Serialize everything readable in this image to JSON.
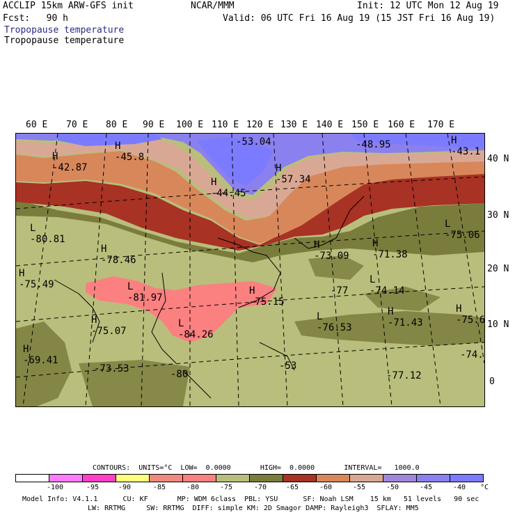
{
  "header": {
    "title": "ACCLIP 15km ARW-GFS init",
    "fcst": "Fcst:   90 h",
    "org": "NCAR/MMM",
    "init": "Init: 12 UTC Mon 12 Aug 19",
    "valid": "Valid: 06 UTC Fri 16 Aug 19 (15 JST Fri 16 Aug 19)",
    "field1": "Tropopause temperature",
    "field2": "Tropopause temperature"
  },
  "map": {
    "lon_labels": [
      "60 E",
      "70 E",
      "80 E",
      "90 E",
      "100 E",
      "110 E",
      "120 E",
      "130 E",
      "140 E",
      "150 E",
      "160 E",
      "170 E"
    ],
    "lat_labels": [
      "40 N",
      "30 N",
      "20 N",
      "10 N",
      "0"
    ],
    "extrema": [
      {
        "mark": "H",
        "value": "-42.87"
      },
      {
        "mark": "H",
        "value": "-45.8"
      },
      {
        "mark": "",
        "value": "-53.04"
      },
      {
        "mark": "H",
        "value": "-44.45"
      },
      {
        "mark": "H",
        "value": "-57.34"
      },
      {
        "mark": "",
        "value": "-48.95"
      },
      {
        "mark": "H",
        "value": "-43.1"
      },
      {
        "mark": "L",
        "value": "-80.81"
      },
      {
        "mark": "H",
        "value": "-78.46"
      },
      {
        "mark": "H",
        "value": "-75.49"
      },
      {
        "mark": "L",
        "value": "-81.97"
      },
      {
        "mark": "H",
        "value": "-75.15"
      },
      {
        "mark": "L",
        "value": "-84.26"
      },
      {
        "mark": "H",
        "value": "-75.07"
      },
      {
        "mark": "H",
        "value": "-69.41"
      },
      {
        "mark": "",
        "value": "-73.53"
      },
      {
        "mark": "",
        "value": "-80"
      },
      {
        "mark": "H",
        "value": "-73.09"
      },
      {
        "mark": "H",
        "value": "-71.38"
      },
      {
        "mark": "L",
        "value": "-75.06"
      },
      {
        "mark": "",
        "value": "-77"
      },
      {
        "mark": "L",
        "value": "-74.14"
      },
      {
        "mark": "L",
        "value": "-76.53"
      },
      {
        "mark": "H",
        "value": "-71.43"
      },
      {
        "mark": "H",
        "value": "-75.6"
      },
      {
        "mark": "",
        "value": "-77.12"
      },
      {
        "mark": "",
        "value": "-74."
      },
      {
        "mark": "",
        "value": "-53"
      }
    ]
  },
  "contours": {
    "text": "CONTOURS:  UNITS=°C  LOW=  0.0000       HIGH=  0.0000       INTERVAL=   1000.0"
  },
  "colorbar": {
    "colors": [
      "#ffffff",
      "#ff7bff",
      "#ff3fc8",
      "#ffff7f",
      "#f0897f",
      "#fb8080",
      "#b9be7c",
      "#7a7c3c",
      "#a83224",
      "#d8875a",
      "#d9a895",
      "#9f87dc",
      "#8a80ee",
      "#7b7bff"
    ],
    "ticks": [
      "-100",
      "-95",
      "-90",
      "-85",
      "-80",
      "-75",
      "-70",
      "-65",
      "-60",
      "-55",
      "-50",
      "-45",
      "-40",
      "°C"
    ]
  },
  "model_info": {
    "line1": "Model Info: V4.1.1      CU: KF       MP: WDM 6class  PBL: YSU      SF: Noah LSM    15 km   51 levels   90 sec",
    "line2": "LW: RRTMG     SW: RRTMG  DIFF: simple KM: 2D Smagor DAMP: Rayleigh3  SFLAY: MM5"
  }
}
